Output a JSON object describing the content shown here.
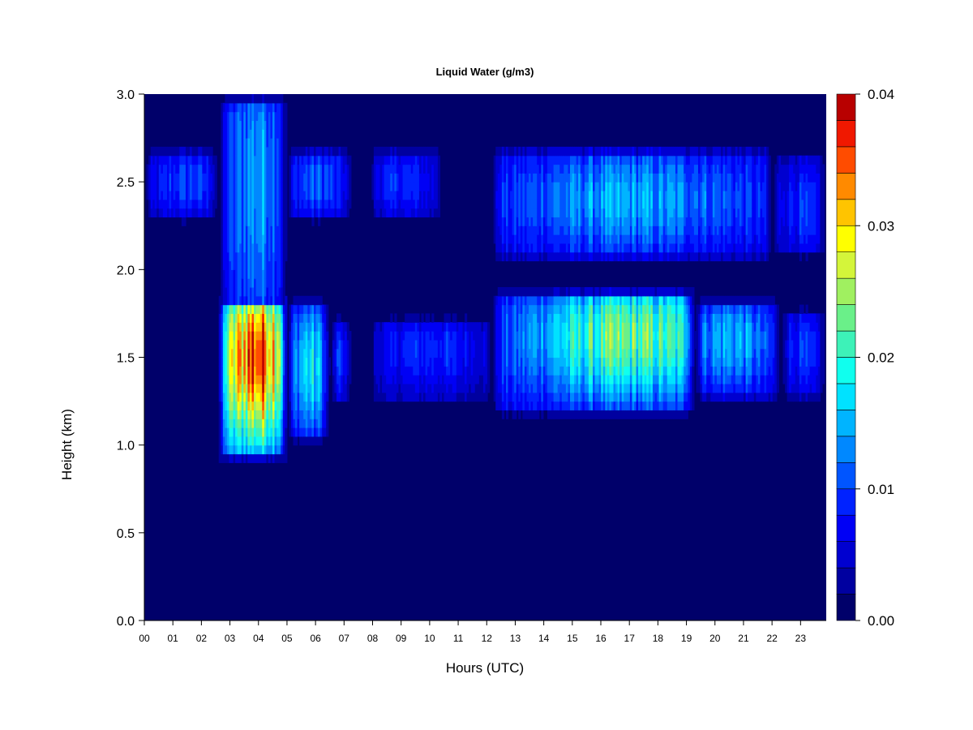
{
  "chart_data": {
    "type": "heatmap",
    "title": "Liquid Water (g/m3)",
    "xlabel": "Hours (UTC)",
    "ylabel": "Height (km)",
    "x_ticks": [
      "00",
      "01",
      "02",
      "03",
      "04",
      "05",
      "06",
      "07",
      "08",
      "09",
      "10",
      "11",
      "12",
      "13",
      "14",
      "15",
      "16",
      "17",
      "18",
      "19",
      "20",
      "21",
      "22",
      "23"
    ],
    "xlim": [
      0,
      23.9
    ],
    "y_ticks": [
      "0.0",
      "0.5",
      "1.0",
      "1.5",
      "2.0",
      "2.5",
      "3.0"
    ],
    "ylim": [
      0,
      3.0
    ],
    "colorbar": {
      "ticks": [
        "0.00",
        "0.01",
        "0.02",
        "0.03",
        "0.04"
      ],
      "range": [
        0,
        0.04
      ],
      "levels": 20,
      "colors": [
        "#00006a",
        "#0000a0",
        "#0000d0",
        "#0000f5",
        "#0022ff",
        "#0055ff",
        "#0088ff",
        "#00b4ff",
        "#00e2ff",
        "#10ffee",
        "#3df2b8",
        "#6af089",
        "#a0f060",
        "#d4f53a",
        "#ffff00",
        "#ffc400",
        "#ff8a00",
        "#ff4c00",
        "#f01800",
        "#b80000"
      ]
    },
    "features": [
      {
        "t": [
          2.6,
          5.0
        ],
        "h": [
          0.9,
          1.85
        ],
        "peak": 0.037,
        "center": [
          4.0,
          1.5
        ]
      },
      {
        "t": [
          5.0,
          6.5
        ],
        "h": [
          1.0,
          1.85
        ],
        "peak": 0.017,
        "center": [
          5.8,
          1.45
        ]
      },
      {
        "t": [
          6.5,
          7.3
        ],
        "h": [
          1.2,
          1.75
        ],
        "peak": 0.009,
        "center": [
          6.8,
          1.5
        ]
      },
      {
        "t": [
          7.9,
          12.2
        ],
        "h": [
          1.2,
          1.75
        ],
        "peak": 0.009,
        "center": [
          10.0,
          1.55
        ]
      },
      {
        "t": [
          12.2,
          19.3
        ],
        "h": [
          1.15,
          1.9
        ],
        "peak": 0.022,
        "center": [
          17.0,
          1.62
        ]
      },
      {
        "t": [
          19.3,
          22.3
        ],
        "h": [
          1.22,
          1.85
        ],
        "peak": 0.015,
        "center": [
          20.5,
          1.6
        ]
      },
      {
        "t": [
          22.3,
          23.9
        ],
        "h": [
          1.22,
          1.8
        ],
        "peak": 0.009,
        "center": [
          23.0,
          1.55
        ]
      },
      {
        "t": [
          0.0,
          2.6
        ],
        "h": [
          2.25,
          2.72
        ],
        "peak": 0.01,
        "center": [
          1.5,
          2.5
        ]
      },
      {
        "t": [
          2.6,
          5.0
        ],
        "h": [
          0.95,
          3.0
        ],
        "peak": 0.014,
        "center": [
          4.0,
          2.5
        ]
      },
      {
        "t": [
          5.0,
          7.3
        ],
        "h": [
          2.25,
          2.72
        ],
        "peak": 0.011,
        "center": [
          6.0,
          2.5
        ]
      },
      {
        "t": [
          7.9,
          10.5
        ],
        "h": [
          2.25,
          2.72
        ],
        "peak": 0.009,
        "center": [
          9.0,
          2.5
        ]
      },
      {
        "t": [
          12.2,
          22.0
        ],
        "h": [
          2.02,
          2.72
        ],
        "peak": 0.014,
        "center": [
          17.0,
          2.4
        ]
      },
      {
        "t": [
          22.0,
          23.9
        ],
        "h": [
          2.05,
          2.7
        ],
        "peak": 0.009,
        "center": [
          23.0,
          2.35
        ]
      }
    ]
  }
}
